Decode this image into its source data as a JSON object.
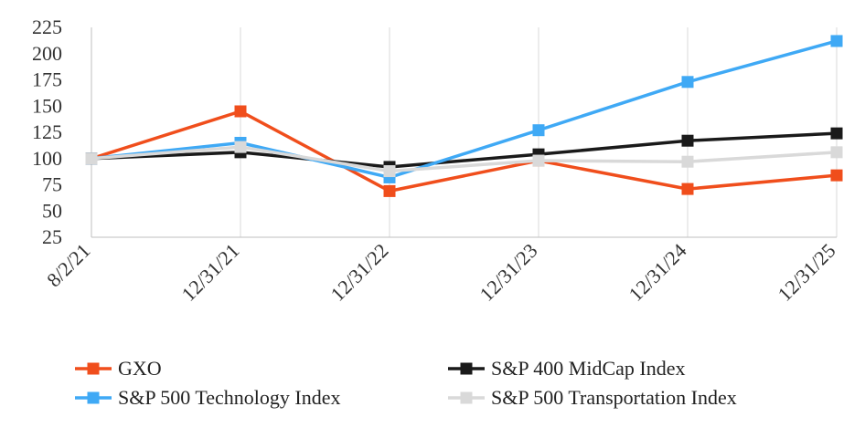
{
  "chart_data": {
    "type": "line",
    "title": "",
    "xlabel": "",
    "ylabel": "",
    "categories": [
      "8/2/21",
      "12/31/21",
      "12/31/22",
      "12/31/23",
      "12/31/24",
      "12/31/25"
    ],
    "yticks": [
      "225",
      "200",
      "175",
      "150",
      "125",
      "100",
      "75",
      "50",
      "25"
    ],
    "ylim": [
      25,
      225
    ],
    "grid": "vertical",
    "legend_position": "bottom",
    "series": [
      {
        "name": "GXO",
        "color": "#f04e1c",
        "values": [
          100,
          145,
          69,
          98,
          71,
          84
        ]
      },
      {
        "name": "S&P 400 MidCap Index",
        "color": "#1a1a1a",
        "values": [
          100,
          106,
          92,
          104,
          117,
          124
        ]
      },
      {
        "name": "S&P 500 Technology Index",
        "color": "#3fa9f5",
        "values": [
          100,
          115,
          82,
          127,
          173,
          212
        ]
      },
      {
        "name": "S&P 500 Transportation Index",
        "color": "#d9d9d9",
        "values": [
          100,
          111,
          88,
          98,
          97,
          106
        ]
      }
    ]
  }
}
